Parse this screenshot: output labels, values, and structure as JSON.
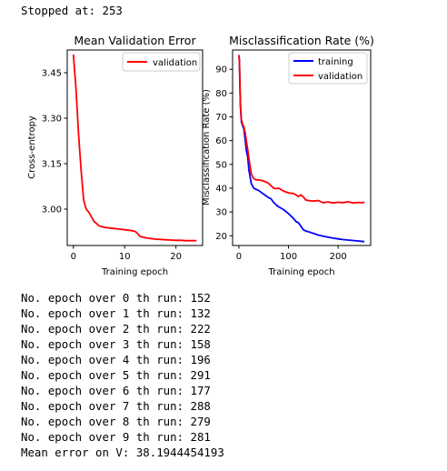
{
  "output": {
    "stopped_line": "Stopped at: 253",
    "run_lines": [
      "No. epoch over 0 th run: 152",
      "No. epoch over 1 th run: 132",
      "No. epoch over 2 th run: 222",
      "No. epoch over 3 th run: 158",
      "No. epoch over 4 th run: 196",
      "No. epoch over 5 th run: 291",
      "No. epoch over 6 th run: 177",
      "No. epoch over 7 th run: 288",
      "No. epoch over 8 th run: 279",
      "No. epoch over 9 th run: 281"
    ],
    "mean_line": "Mean error on V: 38.1944454193"
  },
  "chart_data": [
    {
      "type": "line",
      "title": "Mean Validation Error",
      "xlabel": "Training epoch",
      "ylabel": "Cross-entropy",
      "xlim": [
        -1.2,
        25.2
      ],
      "ylim": [
        2.88,
        3.525
      ],
      "xticks": [
        0,
        10,
        20
      ],
      "yticks": [
        3.0,
        3.15,
        3.3,
        3.45
      ],
      "ytick_labels": [
        "3.00",
        "3.15",
        "3.30",
        "3.45"
      ],
      "legend": "top-right",
      "series": [
        {
          "name": "validation",
          "color": "#ff0000",
          "x": [
            0,
            0.5,
            1,
            1.5,
            2,
            2.5,
            3,
            4,
            5,
            6,
            7,
            8,
            9,
            10,
            11,
            12,
            12.5,
            13,
            14,
            15,
            16,
            17,
            18,
            19,
            20,
            21,
            22,
            23,
            24
          ],
          "y": [
            3.51,
            3.4,
            3.25,
            3.13,
            3.03,
            3.0,
            2.99,
            2.96,
            2.945,
            2.94,
            2.938,
            2.936,
            2.934,
            2.932,
            2.93,
            2.927,
            2.92,
            2.91,
            2.906,
            2.903,
            2.901,
            2.9,
            2.899,
            2.898,
            2.897,
            2.897,
            2.896,
            2.896,
            2.896
          ]
        }
      ]
    },
    {
      "type": "line",
      "title": "Misclassification Rate (%)",
      "xlabel": "Training epoch",
      "ylabel": "Misclassification Rate (%)",
      "xlim": [
        -12.65,
        265.65
      ],
      "ylim": [
        15.9,
        98.1
      ],
      "xticks": [
        0,
        100,
        200
      ],
      "yticks": [
        20,
        30,
        40,
        50,
        60,
        70,
        80,
        90
      ],
      "ytick_labels": [
        "20",
        "30",
        "40",
        "50",
        "60",
        "70",
        "80",
        "90"
      ],
      "legend": "top-right",
      "series": [
        {
          "name": "training",
          "color": "#0000ff",
          "x": [
            0,
            1,
            2,
            3,
            5,
            8,
            10,
            13,
            15,
            18,
            20,
            25,
            30,
            35,
            40,
            50,
            60,
            65,
            70,
            75,
            80,
            90,
            100,
            110,
            115,
            120,
            125,
            130,
            135,
            140,
            150,
            160,
            170,
            180,
            190,
            200,
            210,
            220,
            230,
            240,
            250,
            253
          ],
          "y": [
            96,
            94,
            85,
            75,
            68,
            66,
            65,
            60,
            56,
            53,
            48,
            42,
            40,
            39.5,
            39,
            37.5,
            36,
            35.5,
            34,
            33,
            32.2,
            31,
            29.3,
            27.3,
            26,
            25.5,
            24,
            22.5,
            22,
            21.7,
            21,
            20.3,
            19.8,
            19.4,
            19.0,
            18.7,
            18.4,
            18.2,
            18.0,
            17.8,
            17.6,
            17.5
          ]
        },
        {
          "name": "validation",
          "color": "#ff0000",
          "x": [
            0,
            1,
            2,
            3,
            5,
            8,
            10,
            13,
            15,
            18,
            20,
            25,
            30,
            35,
            40,
            50,
            60,
            65,
            70,
            75,
            80,
            90,
            100,
            110,
            115,
            120,
            125,
            130,
            135,
            140,
            150,
            160,
            170,
            180,
            190,
            200,
            210,
            220,
            230,
            240,
            250,
            253
          ],
          "y": [
            96,
            94,
            85,
            76,
            69,
            66.5,
            66,
            63,
            60,
            56,
            53,
            46,
            44,
            43.5,
            43.5,
            43,
            42,
            41,
            40,
            39.8,
            40,
            38.8,
            38,
            37.8,
            37.2,
            36.5,
            37.2,
            36.3,
            35,
            34.8,
            34.6,
            34.8,
            33.9,
            34.2,
            33.8,
            34.1,
            33.9,
            34.3,
            33.8,
            34.0,
            33.9,
            34.2
          ]
        }
      ]
    }
  ]
}
